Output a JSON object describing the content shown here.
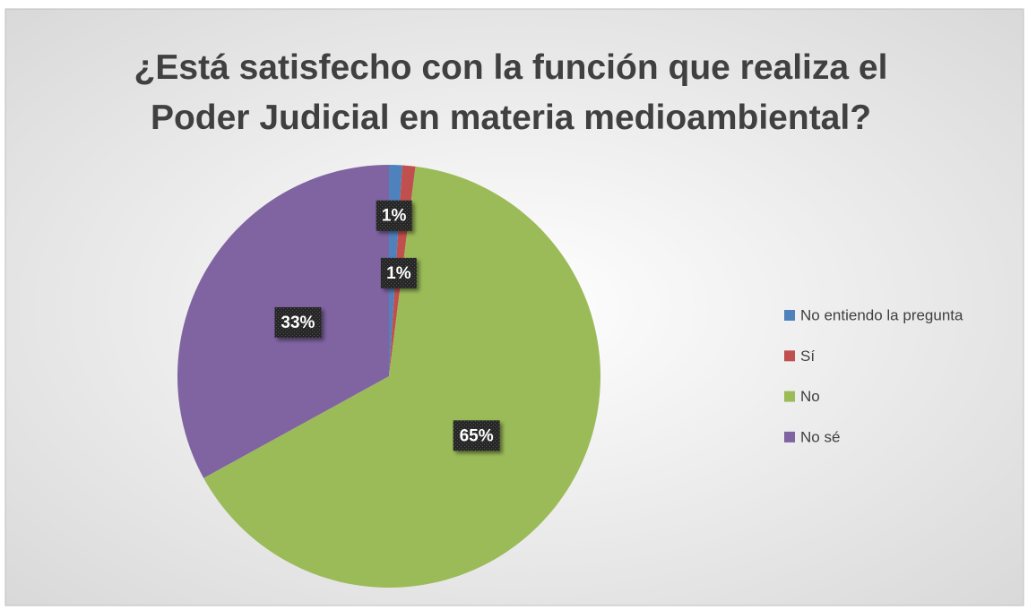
{
  "chart_data": {
    "type": "pie",
    "title": "¿Está satisfecho con la función que realiza el Poder Judicial en materia medioambiental?",
    "categories": [
      "No entiendo la pregunta",
      "Sí",
      "No",
      "No sé"
    ],
    "values": [
      1,
      1,
      65,
      33
    ],
    "value_labels": [
      "1%",
      "1%",
      "65%",
      "33%"
    ],
    "colors": [
      "#4f81bd",
      "#c0504d",
      "#9bbb59",
      "#8064a2"
    ],
    "legend": "right"
  }
}
